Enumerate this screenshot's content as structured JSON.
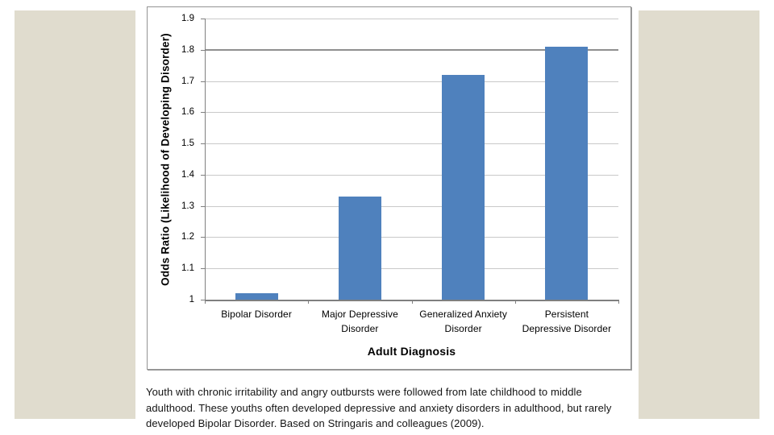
{
  "slide": {
    "background_color": "#ffffff",
    "side_panel_color": "#e0dcce"
  },
  "chart_data": {
    "type": "bar",
    "title": "",
    "xlabel": "Adult Diagnosis",
    "ylabel": "Odds Ratio (Likelihood of Developing Disorder)",
    "categories": [
      "Bipolar Disorder",
      "Major Depressive Disorder",
      "Generalized Anxiety Disorder",
      "Persistent Depressive Disorder"
    ],
    "category_label_lines": [
      [
        "Bipolar Disorder"
      ],
      [
        "Major Depressive",
        "Disorder"
      ],
      [
        "Generalized Anxiety",
        "Disorder"
      ],
      [
        "Persistent",
        "Depressive Disorder"
      ]
    ],
    "values": [
      1.02,
      1.33,
      1.72,
      1.81
    ],
    "ylim": [
      1,
      1.9
    ],
    "yticks": [
      1,
      1.1,
      1.2,
      1.3,
      1.4,
      1.5,
      1.6,
      1.7,
      1.8,
      1.9
    ],
    "ytick_labels": [
      "1",
      "1.1",
      "1.2",
      "1.3",
      "1.4",
      "1.5",
      "1.6",
      "1.7",
      "1.8",
      "1.9"
    ],
    "grid": true,
    "legend": "none",
    "bar_color": "#4f81bd",
    "gridline_color": "#c9c9c9",
    "emphasized_gridline_value": 1.8,
    "emphasized_gridline_color": "#8f8f8f",
    "axis_color": "#7f7f7f"
  },
  "caption": {
    "lines": [
      "Youth with chronic irritability and angry outbursts were followed from late childhood to middle",
      "adulthood. These youths often developed depressive and anxiety disorders in adulthood, but rarely",
      "developed Bipolar Disorder. Based on Stringaris and colleagues (2009)."
    ]
  }
}
